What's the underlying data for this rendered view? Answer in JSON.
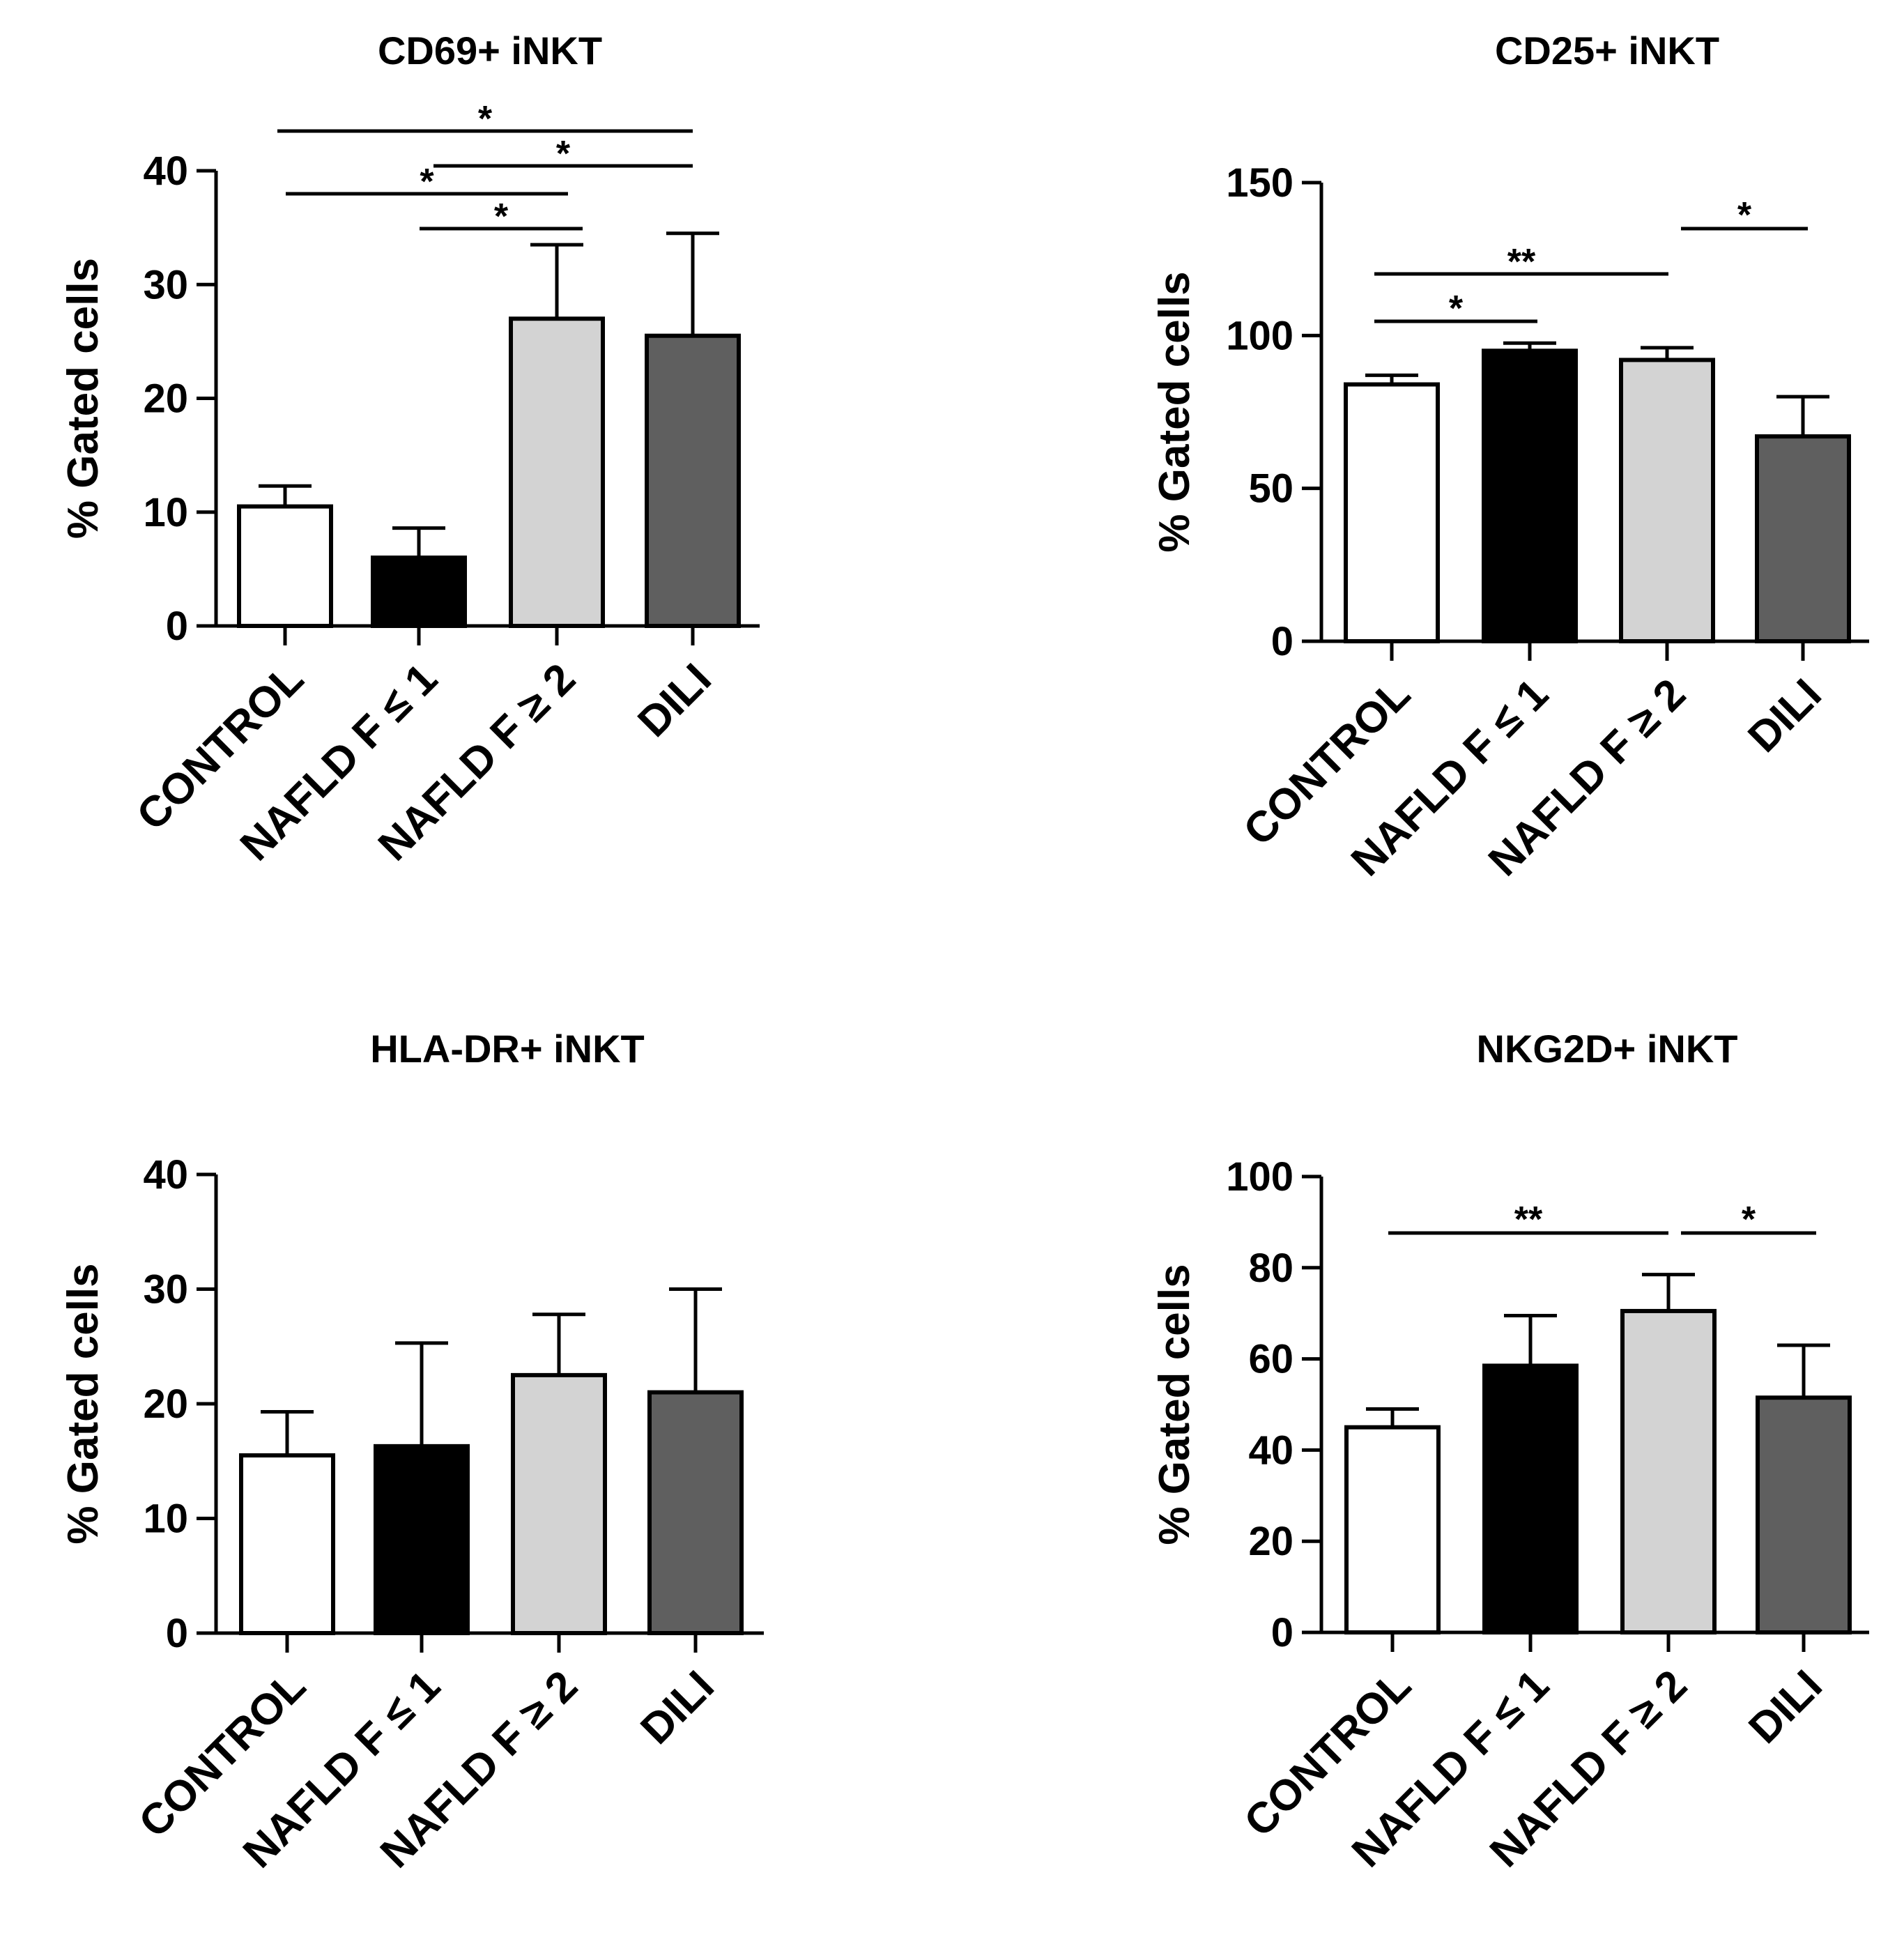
{
  "chart_data": [
    {
      "type": "bar",
      "title": "CD69+ iNKT",
      "ylabel": "% Gated cells",
      "xlabel": "",
      "categories": [
        "CONTROL",
        "NAFLD F ≤ 1",
        "NAFLD F ≥ 2",
        "DILI"
      ],
      "values": [
        10.5,
        6.0,
        27.0,
        25.5
      ],
      "errors": [
        1.8,
        2.6,
        6.5,
        9.0
      ],
      "ylim": [
        0,
        40
      ],
      "yticks": [
        0,
        10,
        20,
        30,
        40
      ],
      "colors": [
        "#ffffff",
        "#000000",
        "#d3d3d3",
        "#5f5f5f"
      ],
      "significance": [
        {
          "from": 0,
          "to": 3,
          "label": "*"
        },
        {
          "from": 1,
          "to": 3,
          "label": "*"
        },
        {
          "from": 0,
          "to": 2,
          "label": "*"
        },
        {
          "from": 1,
          "to": 2,
          "label": "*"
        }
      ]
    },
    {
      "type": "bar",
      "title": "CD25+ iNKT",
      "ylabel": "% Gated cells",
      "xlabel": "",
      "categories": [
        "CONTROL",
        "NAFLD F ≤ 1",
        "NAFLD F ≥ 2",
        "DILI"
      ],
      "values": [
        84,
        95,
        92,
        67
      ],
      "errors": [
        3,
        2.5,
        4,
        13
      ],
      "ylim": [
        0,
        150
      ],
      "yticks": [
        0,
        50,
        100,
        150
      ],
      "colors": [
        "#ffffff",
        "#000000",
        "#d3d3d3",
        "#5f5f5f"
      ],
      "significance": [
        {
          "from": 0,
          "to": 2,
          "label": "**"
        },
        {
          "from": 0,
          "to": 1,
          "label": "*"
        },
        {
          "from": 2,
          "to": 3,
          "label": "*"
        }
      ]
    },
    {
      "type": "bar",
      "title": "HLA-DR+ iNKT",
      "ylabel": "% Gated cells",
      "xlabel": "",
      "categories": [
        "CONTROL",
        "NAFLD F ≤ 1",
        "NAFLD F ≥ 2",
        "DILI"
      ],
      "values": [
        15.5,
        16.3,
        22.5,
        21.0
      ],
      "errors": [
        3.8,
        9.0,
        5.3,
        9.0
      ],
      "ylim": [
        0,
        40
      ],
      "yticks": [
        0,
        10,
        20,
        30,
        40
      ],
      "colors": [
        "#ffffff",
        "#000000",
        "#d3d3d3",
        "#5f5f5f"
      ],
      "significance": []
    },
    {
      "type": "bar",
      "title": "NKG2D+ iNKT",
      "ylabel": "% Gated cells",
      "xlabel": "",
      "categories": [
        "CONTROL",
        "NAFLD F ≤ 1",
        "NAFLD F ≥ 2",
        "DILI"
      ],
      "values": [
        45,
        58.5,
        70.5,
        51.5
      ],
      "errors": [
        4,
        11,
        8,
        11.5
      ],
      "ylim": [
        0,
        100
      ],
      "yticks": [
        0,
        20,
        40,
        60,
        80,
        100
      ],
      "colors": [
        "#ffffff",
        "#000000",
        "#d3d3d3",
        "#5f5f5f"
      ],
      "significance": [
        {
          "from": 0,
          "to": 2,
          "label": "**"
        },
        {
          "from": 2,
          "to": 3,
          "label": "*"
        }
      ]
    }
  ]
}
